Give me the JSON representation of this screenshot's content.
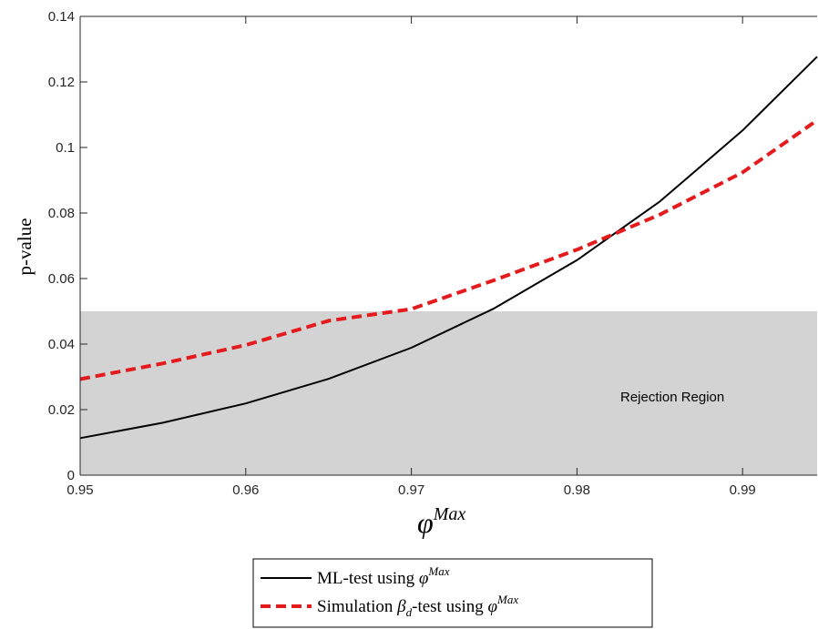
{
  "chart_data": {
    "type": "line",
    "xlabel_base": "φ",
    "xlabel_sup": "Max",
    "ylabel": "p-value",
    "xlim": [
      0.95,
      0.9945
    ],
    "ylim": [
      0,
      0.14
    ],
    "xticks": [
      0.95,
      0.96,
      0.97,
      0.98,
      0.99
    ],
    "xtick_labels": [
      "0.95",
      "0.96",
      "0.97",
      "0.98",
      "0.99"
    ],
    "yticks": [
      0,
      0.02,
      0.04,
      0.06,
      0.08,
      0.1,
      0.12,
      0.14
    ],
    "ytick_labels": [
      "0",
      "0.02",
      "0.04",
      "0.06",
      "0.08",
      "0.1",
      "0.12",
      "0.14"
    ],
    "grid": false,
    "legend_position": "bottom-center, outside",
    "region": {
      "y_from": 0,
      "y_to": 0.05,
      "color": "#d3d3d3",
      "label": "Rejection Region"
    },
    "series": [
      {
        "name": "ML-test using φ^Max",
        "legend_main": "ML-test using ",
        "legend_math": "φ",
        "legend_sup": "Max",
        "color": "#000000",
        "dash": "solid",
        "x": [
          0.95,
          0.955,
          0.96,
          0.965,
          0.97,
          0.975,
          0.98,
          0.985,
          0.99,
          0.9945
        ],
        "values": [
          0.0113,
          0.016,
          0.0219,
          0.0294,
          0.0389,
          0.0509,
          0.0656,
          0.0835,
          0.1052,
          0.1277
        ]
      },
      {
        "name": "Simulation β_d-test using φ^Max",
        "legend_main": "Simulation ",
        "legend_math": "β",
        "legend_sub": "d",
        "legend_mid": "-test using ",
        "legend_math2": "φ",
        "legend_sup": "Max",
        "color": "#e41a1c",
        "dash": "dashed",
        "x": [
          0.95,
          0.955,
          0.96,
          0.965,
          0.97,
          0.975,
          0.98,
          0.985,
          0.99,
          0.9945
        ],
        "values": [
          0.0293,
          0.0341,
          0.0397,
          0.0471,
          0.0507,
          0.0595,
          0.0688,
          0.0795,
          0.0924,
          0.1083
        ]
      }
    ]
  }
}
